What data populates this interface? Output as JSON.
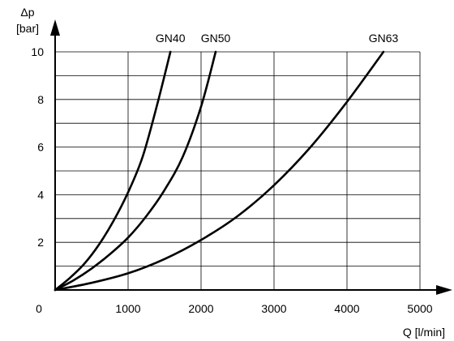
{
  "chart_data": {
    "type": "line",
    "title": "",
    "xlabel": "Q [l/min]",
    "ylabel_symbol": "Δp",
    "ylabel_unit": "[bar]",
    "xlim": [
      0,
      5000
    ],
    "ylim": [
      0,
      10
    ],
    "x_ticks": [
      0,
      1000,
      2000,
      3000,
      4000,
      5000
    ],
    "y_ticks": [
      2,
      4,
      6,
      8,
      10
    ],
    "x_grid_step": 1000,
    "y_grid_step": 1,
    "grid": true,
    "series": [
      {
        "name": "GN40",
        "x": [
          0,
          200,
          400,
          600,
          800,
          1000,
          1200,
          1400,
          1580
        ],
        "y": [
          0,
          0.5,
          1.1,
          1.9,
          2.9,
          4.1,
          5.6,
          7.8,
          10
        ]
      },
      {
        "name": "GN50",
        "x": [
          0,
          250,
          500,
          750,
          1000,
          1250,
          1500,
          1750,
          2000,
          2200
        ],
        "y": [
          0,
          0.4,
          0.9,
          1.5,
          2.2,
          3.1,
          4.2,
          5.6,
          7.7,
          10
        ]
      },
      {
        "name": "GN63",
        "x": [
          0,
          500,
          1000,
          1500,
          2000,
          2500,
          3000,
          3500,
          4000,
          4500
        ],
        "y": [
          0,
          0.3,
          0.7,
          1.3,
          2.1,
          3.1,
          4.4,
          6.0,
          7.9,
          10
        ]
      }
    ]
  }
}
